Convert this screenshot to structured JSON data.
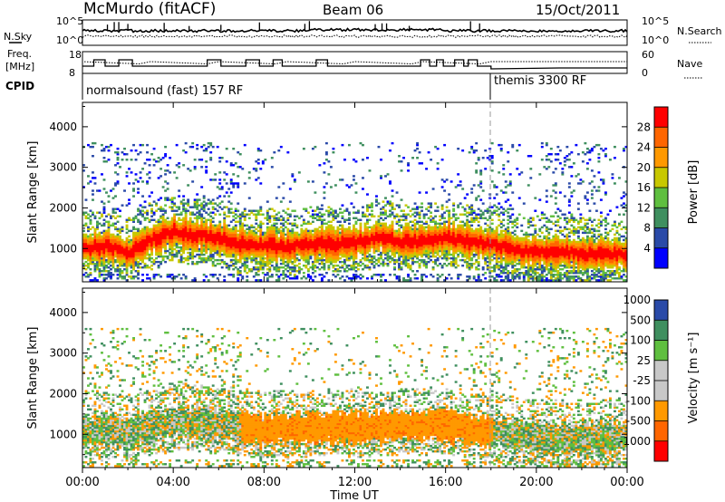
{
  "header": {
    "station": "McMurdo (fitACF)",
    "beam": "Beam 06",
    "date": "15/Oct/2011"
  },
  "side_labels": {
    "nsky": "N.Sky",
    "freq_line1": "Freq.",
    "freq_line2": "[MHz]",
    "cpid": "CPID",
    "nsearch": "N.Search",
    "nave": "Nave"
  },
  "strip_ticks": {
    "noise_left": [
      "10^5",
      "10^0"
    ],
    "noise_right": [
      "10^5",
      "10^0"
    ],
    "freq_left": [
      "18",
      "8"
    ],
    "nave_right": [
      "60",
      "0"
    ]
  },
  "cpid_labels": {
    "first": "normalsound (fast) 157 RF",
    "second": "themis 3300 RF"
  },
  "colors": {
    "power": [
      "#0000ff",
      "#2a4aa8",
      "#3f8f5f",
      "#5fbf3f",
      "#c8c800",
      "#ff9900",
      "#ff6600",
      "#ff0000"
    ],
    "velocity": [
      "#ff0000",
      "#ff6600",
      "#ff9900",
      "#c8c8c8",
      "#c8c8c8",
      "#5fbf3f",
      "#3f8f5f",
      "#2a4aa8"
    ]
  },
  "chart_data": [
    {
      "type": "heatmap",
      "name": "power",
      "ylabel": "Slant Range [km]",
      "yticks": [
        "1000",
        "2000",
        "3000",
        "4000"
      ],
      "ylim": [
        180,
        4600
      ],
      "xlim_hours": [
        0,
        24
      ],
      "colorbar_label": "Power [dB]",
      "colorbar_ticks": [
        "4",
        "8",
        "12",
        "16",
        "20",
        "24",
        "28"
      ],
      "colorbar_range": [
        0,
        32
      ],
      "band_center_km": [
        [
          0,
          1000
        ],
        [
          1,
          1050
        ],
        [
          2,
          900
        ],
        [
          3,
          1200
        ],
        [
          4,
          1400
        ],
        [
          5,
          1300
        ],
        [
          6,
          1250
        ],
        [
          7,
          1100
        ],
        [
          8,
          1050
        ],
        [
          9,
          1050
        ],
        [
          10,
          1100
        ],
        [
          11,
          1100
        ],
        [
          12,
          1150
        ],
        [
          13,
          1250
        ],
        [
          14,
          1150
        ],
        [
          15,
          1150
        ],
        [
          16,
          1250
        ],
        [
          17,
          1150
        ],
        [
          18,
          1100
        ],
        [
          19,
          950
        ],
        [
          20,
          900
        ],
        [
          21,
          900
        ],
        [
          22,
          850
        ],
        [
          23,
          850
        ],
        [
          24,
          850
        ]
      ],
      "band_peak_db": 28
    },
    {
      "type": "heatmap",
      "name": "velocity",
      "ylabel": "Slant Range [km]",
      "yticks": [
        "1000",
        "2000",
        "3000",
        "4000"
      ],
      "ylim": [
        180,
        4600
      ],
      "xlim_hours": [
        0,
        24
      ],
      "colorbar_label": "Velocity [m s⁻¹]",
      "colorbar_ticks": [
        "-1000",
        "-500",
        "-100",
        "-25",
        "25",
        "100",
        "500",
        "1000"
      ],
      "colorbar_range": [
        -1000,
        1000
      ],
      "band_center_km": [
        [
          0,
          1100
        ],
        [
          2,
          1050
        ],
        [
          4,
          1300
        ],
        [
          6,
          1250
        ],
        [
          8,
          1100
        ],
        [
          10,
          1150
        ],
        [
          12,
          1150
        ],
        [
          14,
          1200
        ],
        [
          16,
          1200
        ],
        [
          18,
          1050
        ],
        [
          20,
          900
        ],
        [
          22,
          900
        ],
        [
          24,
          950
        ]
      ],
      "dominant_velocity": -300
    }
  ],
  "time_axis": {
    "ticks": [
      "00:00",
      "04:00",
      "08:00",
      "12:00",
      "16:00",
      "20:00",
      "00:00"
    ],
    "label": "Time UT",
    "cpid_change_hour": 18
  }
}
